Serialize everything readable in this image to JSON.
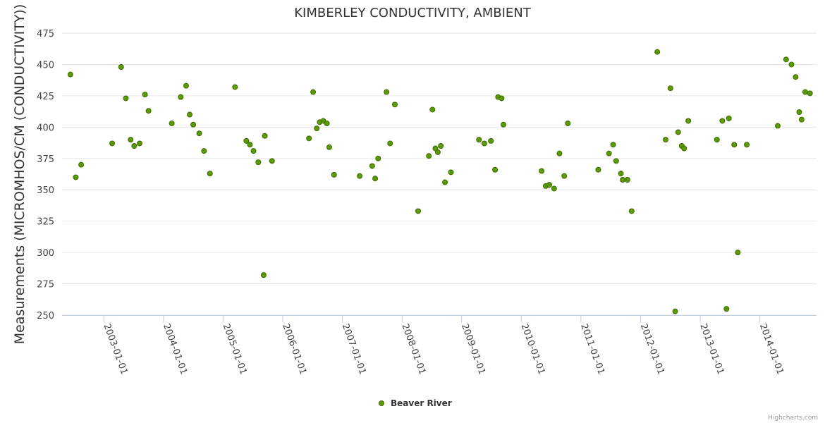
{
  "chart_data": {
    "type": "scatter",
    "title": "KIMBERLEY CONDUCTIVITY, AMBIENT",
    "xlabel": "",
    "ylabel": "Measurements (MICROMHOS/CM (CONDUCTIVITY))",
    "ylim": [
      250,
      475
    ],
    "yticks": [
      250,
      275,
      300,
      325,
      350,
      375,
      400,
      425,
      450,
      475
    ],
    "xlim": [
      2002.3,
      2014.95
    ],
    "xticks": [
      {
        "value": 2003,
        "label": "2003-01-01"
      },
      {
        "value": 2004,
        "label": "2004-01-01"
      },
      {
        "value": 2005,
        "label": "2005-01-01"
      },
      {
        "value": 2006,
        "label": "2006-01-01"
      },
      {
        "value": 2007,
        "label": "2007-01-01"
      },
      {
        "value": 2008,
        "label": "2008-01-01"
      },
      {
        "value": 2009,
        "label": "2009-01-01"
      },
      {
        "value": 2010,
        "label": "2010-01-01"
      },
      {
        "value": 2011,
        "label": "2011-01-01"
      },
      {
        "value": 2012,
        "label": "2012-01-01"
      },
      {
        "value": 2013,
        "label": "2013-01-01"
      },
      {
        "value": 2014,
        "label": "2014-01-01"
      }
    ],
    "grid": true,
    "legend_position": "bottom-center",
    "series": [
      {
        "name": "Beaver River",
        "color": "#5b9a00",
        "points": [
          [
            2002.44,
            442
          ],
          [
            2002.53,
            360
          ],
          [
            2002.62,
            370
          ],
          [
            2003.14,
            387
          ],
          [
            2003.29,
            448
          ],
          [
            2003.37,
            423
          ],
          [
            2003.45,
            390
          ],
          [
            2003.51,
            385
          ],
          [
            2003.6,
            387
          ],
          [
            2003.69,
            426
          ],
          [
            2003.75,
            413
          ],
          [
            2004.14,
            403
          ],
          [
            2004.29,
            424
          ],
          [
            2004.38,
            433
          ],
          [
            2004.44,
            410
          ],
          [
            2004.5,
            402
          ],
          [
            2004.6,
            395
          ],
          [
            2004.68,
            381
          ],
          [
            2004.78,
            363
          ],
          [
            2005.2,
            432
          ],
          [
            2005.39,
            389
          ],
          [
            2005.45,
            386
          ],
          [
            2005.51,
            381
          ],
          [
            2005.59,
            372
          ],
          [
            2005.68,
            282
          ],
          [
            2005.7,
            393
          ],
          [
            2005.82,
            373
          ],
          [
            2006.44,
            391
          ],
          [
            2006.51,
            428
          ],
          [
            2006.57,
            399
          ],
          [
            2006.62,
            404
          ],
          [
            2006.68,
            405
          ],
          [
            2006.74,
            403
          ],
          [
            2006.78,
            384
          ],
          [
            2006.86,
            362
          ],
          [
            2007.29,
            361
          ],
          [
            2007.5,
            369
          ],
          [
            2007.55,
            359
          ],
          [
            2007.6,
            375
          ],
          [
            2007.74,
            428
          ],
          [
            2007.8,
            387
          ],
          [
            2007.88,
            418
          ],
          [
            2008.27,
            333
          ],
          [
            2008.45,
            377
          ],
          [
            2008.51,
            414
          ],
          [
            2008.56,
            383
          ],
          [
            2008.6,
            380
          ],
          [
            2008.65,
            385
          ],
          [
            2008.72,
            356
          ],
          [
            2008.82,
            364
          ],
          [
            2009.29,
            390
          ],
          [
            2009.38,
            387
          ],
          [
            2009.49,
            389
          ],
          [
            2009.56,
            366
          ],
          [
            2009.61,
            424
          ],
          [
            2009.67,
            423
          ],
          [
            2009.7,
            402
          ],
          [
            2010.34,
            365
          ],
          [
            2010.41,
            353
          ],
          [
            2010.47,
            354
          ],
          [
            2010.55,
            351
          ],
          [
            2010.64,
            379
          ],
          [
            2010.72,
            361
          ],
          [
            2010.78,
            403
          ],
          [
            2011.29,
            366
          ],
          [
            2011.47,
            379
          ],
          [
            2011.54,
            386
          ],
          [
            2011.59,
            373
          ],
          [
            2011.67,
            363
          ],
          [
            2011.7,
            358
          ],
          [
            2011.78,
            358
          ],
          [
            2011.85,
            333
          ],
          [
            2012.28,
            460
          ],
          [
            2012.42,
            390
          ],
          [
            2012.5,
            431
          ],
          [
            2012.58,
            253
          ],
          [
            2012.63,
            396
          ],
          [
            2012.69,
            385
          ],
          [
            2012.73,
            383
          ],
          [
            2012.8,
            405
          ],
          [
            2013.28,
            390
          ],
          [
            2013.37,
            405
          ],
          [
            2013.44,
            255
          ],
          [
            2013.48,
            407
          ],
          [
            2013.57,
            386
          ],
          [
            2013.63,
            300
          ],
          [
            2013.78,
            386
          ],
          [
            2014.3,
            401
          ],
          [
            2014.44,
            454
          ],
          [
            2014.53,
            450
          ],
          [
            2014.6,
            440
          ],
          [
            2014.66,
            412
          ],
          [
            2014.7,
            406
          ],
          [
            2014.76,
            428
          ],
          [
            2014.84,
            427
          ]
        ]
      }
    ]
  },
  "credits": "Highcharts.com"
}
